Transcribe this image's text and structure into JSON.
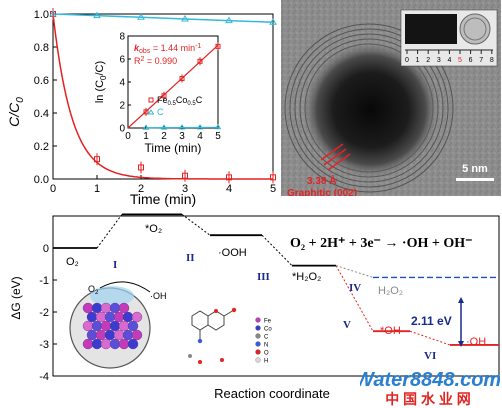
{
  "panel_a": {
    "ylabel": "C/C",
    "ylabel_sub": "0",
    "xlabel": "Time (min)",
    "xticks": [
      "0",
      "1",
      "2",
      "3",
      "4",
      "5"
    ],
    "yticks": [
      "0.0",
      "0.2",
      "0.4",
      "0.6",
      "0.8",
      "1.0"
    ],
    "inset": {
      "ylabel": "ln (C",
      "ylabel_sub": "0",
      "ylabel_tail": "/C)",
      "xlabel": "Time (min)",
      "xticks": [
        "0",
        "1",
        "2",
        "3",
        "4",
        "5"
      ],
      "yticks": [
        "0",
        "2",
        "4",
        "6",
        "8"
      ],
      "kobs_k": "k",
      "kobs_sub": "obs",
      "kobs_val": " = 1.44 min",
      "kobs_sup": "-1",
      "r2": "R",
      "r2_sup": "2",
      "r2_val": " = 0.990",
      "legend_fe": "Fe",
      "legend_fe_sub": "0.5",
      "legend_co": "Co",
      "legend_co_sub": "0.5",
      "legend_c_tail": "C",
      "legend_c": "C"
    }
  },
  "panel_b": {
    "spacing": "3.38 Å",
    "layer": "Graphitic (002)",
    "scale": "5 nm",
    "ruler_numbers": [
      "0",
      "1",
      "2",
      "3",
      "4",
      "5",
      "6",
      "7",
      "8"
    ]
  },
  "panel_c": {
    "ylabel": "ΔG (eV)",
    "xlabel": "Reaction coordinate",
    "yticks": [
      "0",
      "-1",
      "-2",
      "-3",
      "-4"
    ],
    "equation": "O₂ + 2H⁺ + 3e⁻ → ·OH + OH⁻",
    "states": {
      "o2": "O₂",
      "o2_star": "*O₂",
      "ooh": "·OOH",
      "h2o2_star": "*H₂O₂",
      "h2o2": "H₂O₂",
      "oh_star": "*OH",
      "oh": "·OH"
    },
    "steps": [
      "I",
      "II",
      "III",
      "IV",
      "V",
      "VI"
    ],
    "energy_gap": "2.11 eV",
    "inset_o2": "O",
    "inset_o2_sub": "2",
    "inset_oh": "·OH",
    "legend_atoms": [
      "Fe",
      "Co",
      "C",
      "N",
      "O",
      "H"
    ]
  },
  "watermark": {
    "brand": "Water8848.com",
    "chinese": "中 国 水 业 网"
  },
  "colors": {
    "red": "#e32222",
    "cyan": "#36b9d8",
    "navy": "#1a2a8c",
    "purple": "#c23bb8",
    "gray": "#8a8a8a"
  },
  "chart_data": [
    {
      "type": "line",
      "xlabel": "Time (min)",
      "ylabel": "C/C0",
      "xlim": [
        0,
        5
      ],
      "ylim": [
        0,
        1.0
      ],
      "series": [
        {
          "name": "Fe0.5Co0.5C",
          "x": [
            0,
            1,
            2,
            3,
            4,
            5
          ],
          "y": [
            1.0,
            0.12,
            0.07,
            0.02,
            0.01,
            0.01
          ],
          "fit": "exponential"
        },
        {
          "name": "C",
          "x": [
            0,
            1,
            2,
            3,
            4,
            5
          ],
          "y": [
            1.0,
            0.99,
            0.98,
            0.97,
            0.96,
            0.95
          ]
        }
      ]
    },
    {
      "type": "line",
      "xlabel": "Time (min)",
      "ylabel": "ln (C0/C)",
      "xlim": [
        0,
        5
      ],
      "ylim": [
        0,
        8
      ],
      "series": [
        {
          "name": "Fe0.5Co0.5C",
          "x": [
            1,
            2,
            3,
            4,
            5
          ],
          "y": [
            1.4,
            2.8,
            4.3,
            5.8,
            7.1
          ]
        },
        {
          "name": "C",
          "x": [
            1,
            2,
            3,
            4,
            5
          ],
          "y": [
            0.02,
            0.03,
            0.04,
            0.05,
            0.06
          ]
        }
      ],
      "fit": {
        "kobs": 1.44,
        "r2": 0.99
      }
    },
    {
      "type": "line",
      "xlabel": "Reaction coordinate",
      "ylabel": "ΔG (eV)",
      "ylim": [
        -4,
        1
      ],
      "levels": [
        {
          "state": "O₂",
          "dG": 0.0
        },
        {
          "state": "*O₂",
          "dG": 1.05
        },
        {
          "state": "·OOH",
          "dG": 0.4
        },
        {
          "state": "*H₂O₂",
          "dG": -0.55
        },
        {
          "state": "H₂O₂",
          "dG": -0.92
        },
        {
          "state": "*OH",
          "dG": -2.6
        },
        {
          "state": "·OH",
          "dG": -3.03
        }
      ]
    }
  ]
}
